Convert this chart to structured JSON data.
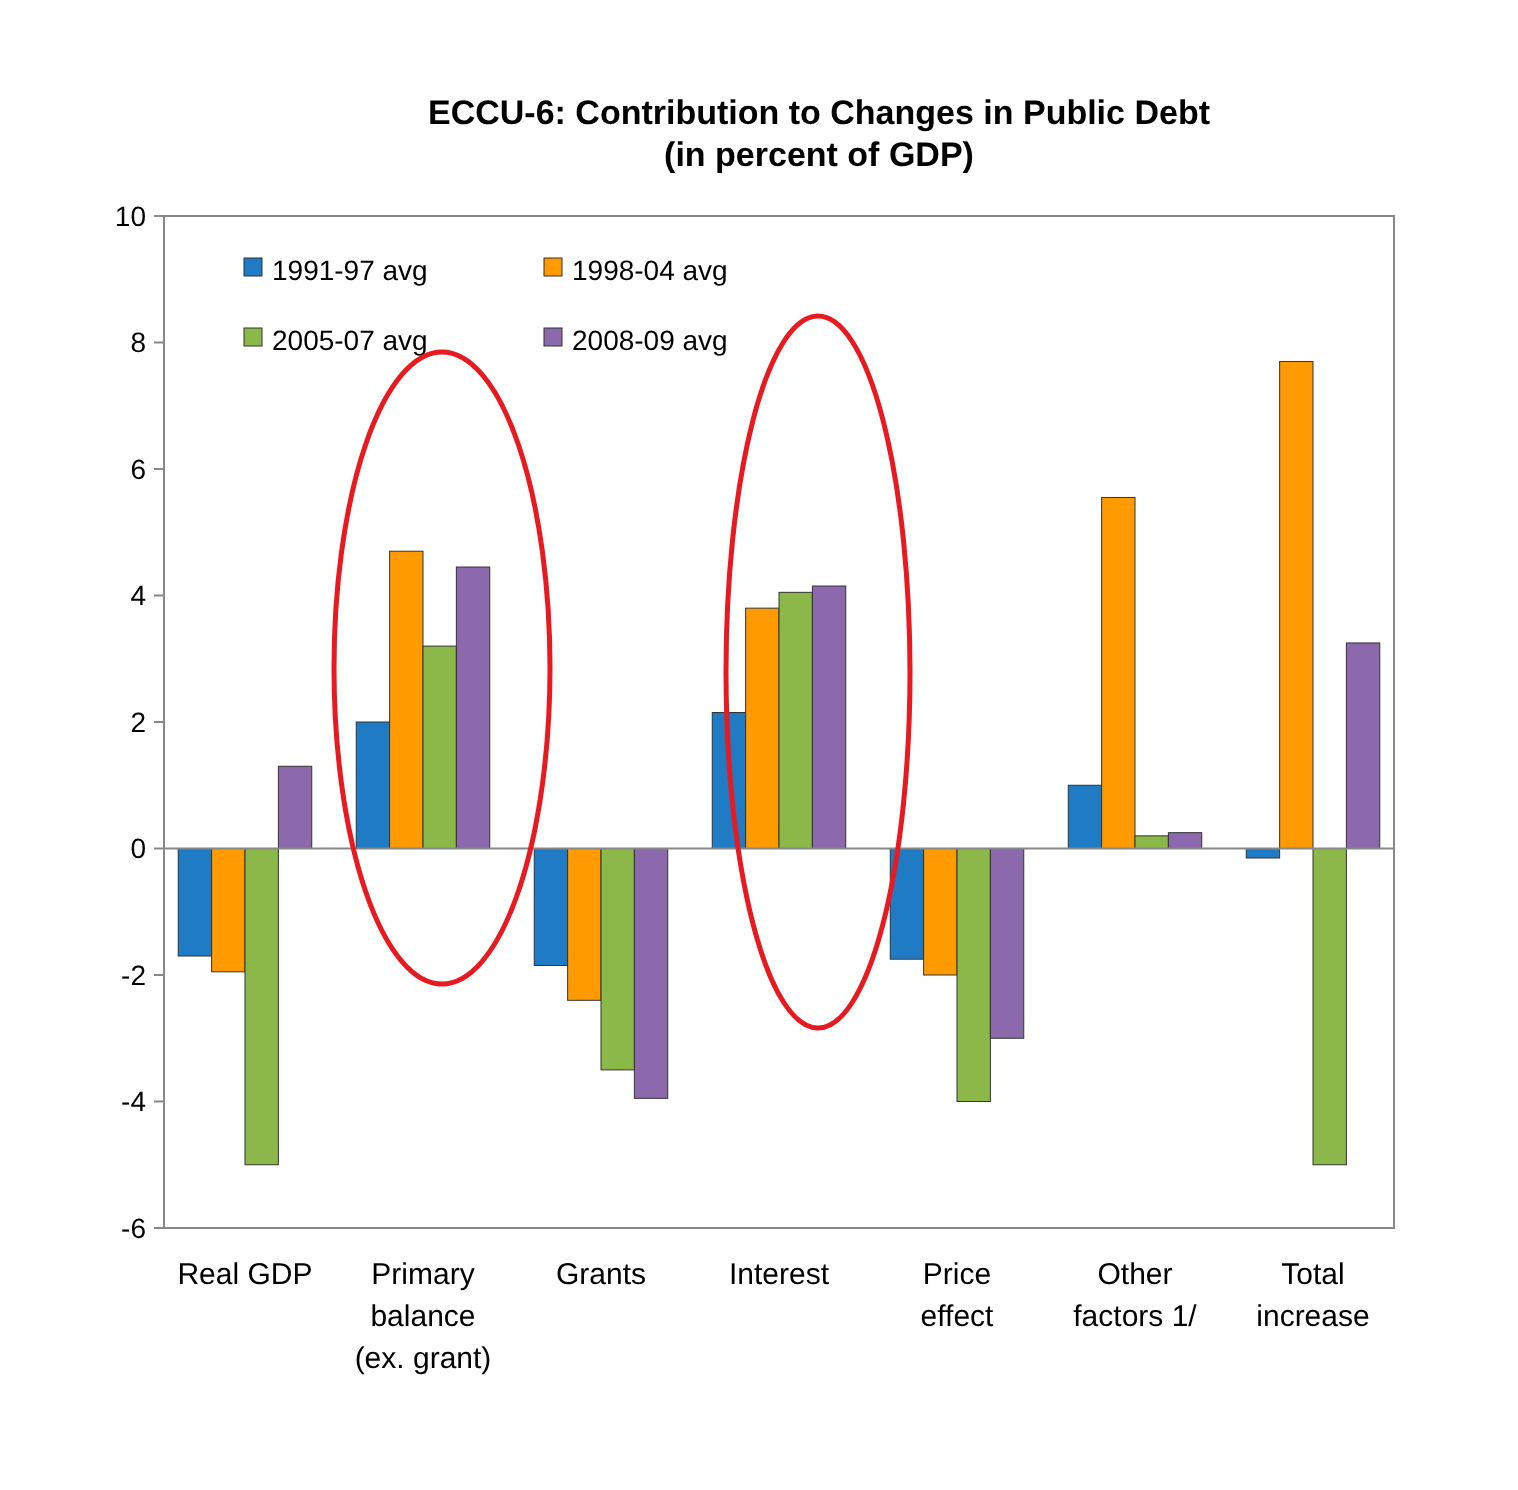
{
  "chart_data": {
    "type": "bar",
    "title": "ECCU-6: Contribution to Changes in Public Debt\n(in percent of GDP)",
    "categories": [
      "Real GDP",
      "Primary\nbalance\n(ex. grant)",
      "Grants",
      "Interest",
      "Price\neffect",
      "Other\nfactors 1/",
      "Total\nincrease"
    ],
    "series": [
      {
        "name": "1991-97 avg",
        "color": "#1f7bc4",
        "values": [
          -1.7,
          2.0,
          -1.85,
          2.15,
          -1.75,
          1.0,
          -0.15
        ]
      },
      {
        "name": "1998-04 avg",
        "color": "#ff9a00",
        "values": [
          -1.95,
          4.7,
          -2.4,
          3.8,
          -2.0,
          5.55,
          7.7
        ]
      },
      {
        "name": "2005-07 avg",
        "color": "#8cb84a",
        "values": [
          -5.0,
          3.2,
          -3.5,
          4.05,
          -4.0,
          0.2,
          -5.0
        ]
      },
      {
        "name": "2008-09 avg",
        "color": "#8c68ad",
        "values": [
          1.3,
          4.45,
          -3.95,
          4.15,
          -3.0,
          0.25,
          3.25
        ]
      }
    ],
    "ylim": [
      -6,
      10
    ],
    "yticks": [
      -6,
      -4,
      -2,
      0,
      2,
      4,
      6,
      8,
      10
    ],
    "legend": "top left"
  }
}
